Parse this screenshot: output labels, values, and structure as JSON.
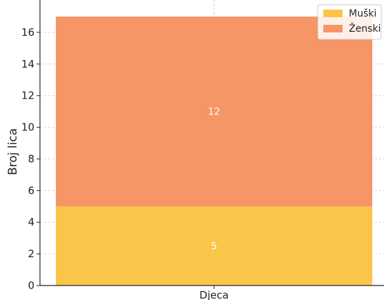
{
  "chart_data": {
    "type": "bar",
    "stacked": true,
    "title": "",
    "categories": [
      "Djeca"
    ],
    "series": [
      {
        "name": "Muški",
        "values": [
          5
        ],
        "color": "#fbc549"
      },
      {
        "name": "Ženski",
        "values": [
          12
        ],
        "color": "#f69565"
      }
    ],
    "xlabel": "",
    "ylabel": "Broj lica",
    "ylim": [
      0,
      17
    ],
    "yticks": [
      0,
      2,
      4,
      6,
      8,
      10,
      12,
      14,
      16
    ],
    "grid": true,
    "legend_position": "top-right"
  }
}
